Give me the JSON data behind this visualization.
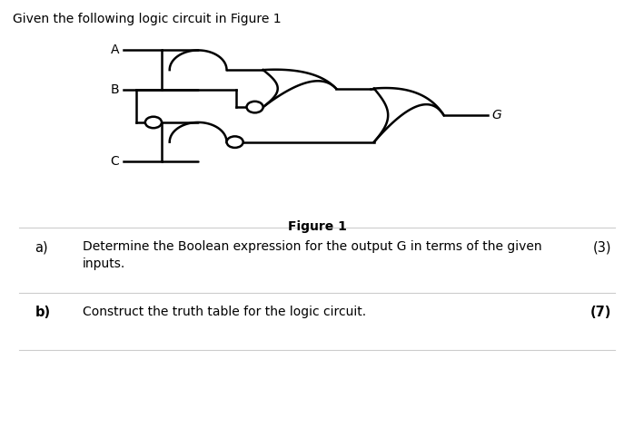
{
  "title": "Given the following logic circuit in Figure 1",
  "figure_label": "Figure 1",
  "question_a": "Determine the Boolean expression for the output G in terms of the given\ninputs.",
  "question_b": "Construct the truth table for the logic circuit.",
  "mark_a": "(3)",
  "mark_b": "(7)",
  "label_a": "a)",
  "label_b": "b)",
  "bg_color": "#ffffff",
  "text_color": "#000000",
  "line_color": "#000000",
  "lw": 1.8,
  "bubble_r": 0.012,
  "fig_width": 6.98,
  "fig_height": 4.82
}
